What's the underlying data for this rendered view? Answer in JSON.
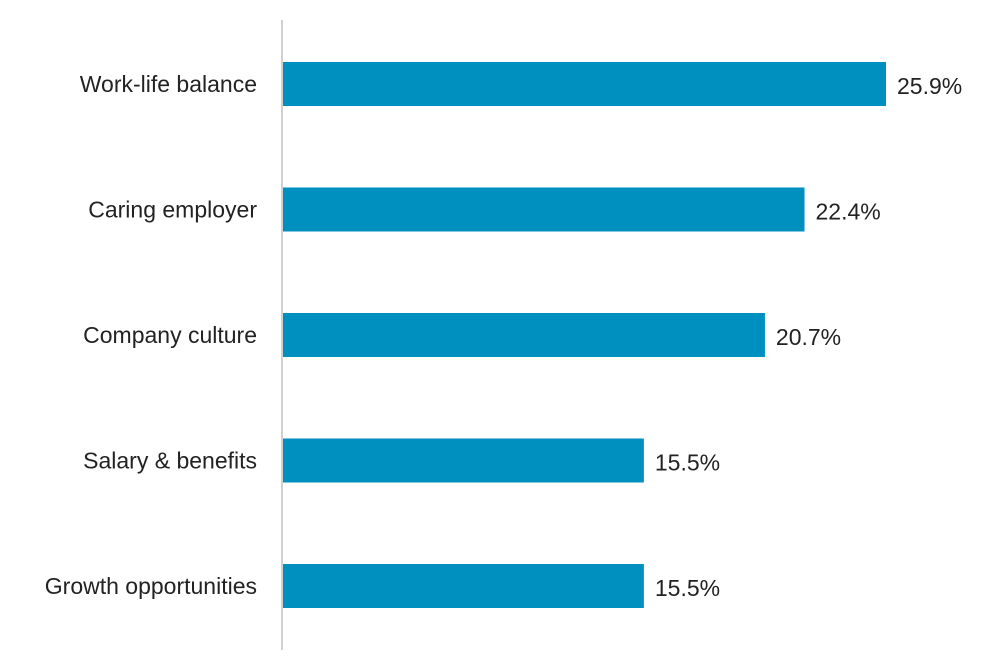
{
  "chart_data": {
    "type": "bar",
    "orientation": "horizontal",
    "categories": [
      "Work-life balance",
      "Caring employer",
      "Company culture",
      "Salary & benefits",
      "Growth opportunities"
    ],
    "values": [
      25.9,
      22.4,
      20.7,
      15.5,
      15.5
    ],
    "value_labels": [
      "25.9%",
      "22.4%",
      "20.7%",
      "15.5%",
      "15.5%"
    ],
    "unit": "%",
    "title": "",
    "xlabel": "",
    "ylabel": "",
    "xlim": [
      0,
      30
    ],
    "grid": false,
    "legend": "none",
    "bar_color": "#0090c0",
    "axis_color": "#d0d0d0"
  }
}
